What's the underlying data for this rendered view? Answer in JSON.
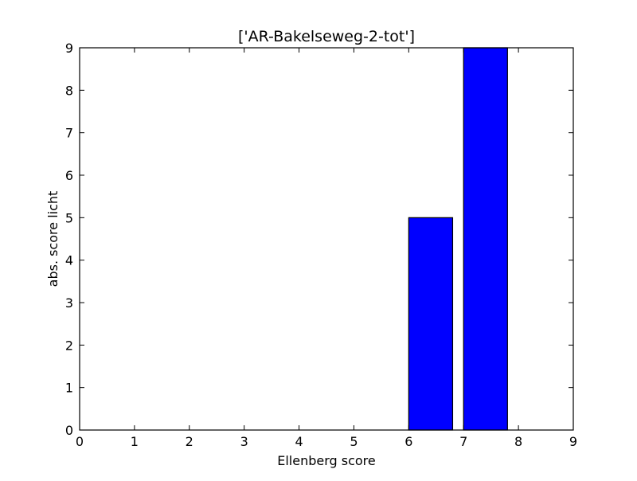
{
  "chart_data": {
    "type": "bar",
    "title": "['AR-Bakelseweg-2-tot']",
    "xlabel": "Ellenberg score",
    "ylabel": "abs. score licht",
    "xlim": [
      0,
      9
    ],
    "ylim": [
      0,
      9
    ],
    "x_ticks": [
      "0",
      "1",
      "2",
      "3",
      "4",
      "5",
      "6",
      "7",
      "8",
      "9"
    ],
    "y_ticks": [
      "0",
      "1",
      "2",
      "3",
      "4",
      "5",
      "6",
      "7",
      "8",
      "9"
    ],
    "grid": false,
    "bar_width": 0.8,
    "categories": [
      0,
      1,
      2,
      3,
      4,
      5,
      6,
      7,
      8
    ],
    "values": [
      0,
      0,
      0,
      0,
      0,
      0,
      5,
      9,
      0
    ],
    "colors": {
      "bar_fill": "#0000ff",
      "bar_edge": "#000000",
      "axes": "#000000",
      "background": "#ffffff"
    }
  }
}
